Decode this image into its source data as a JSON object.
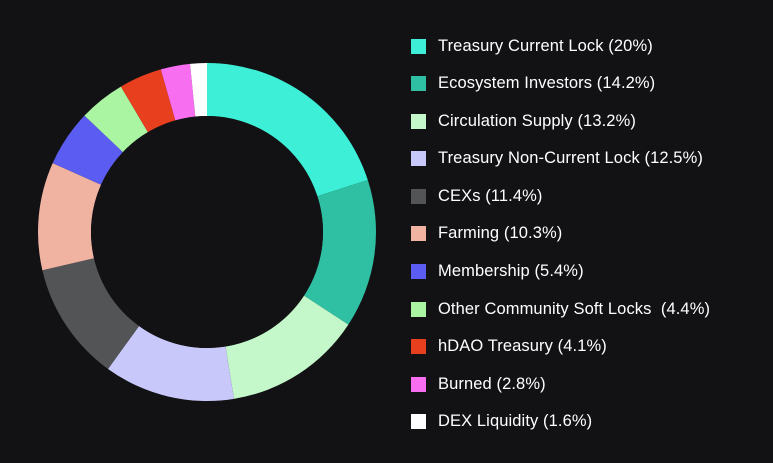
{
  "chart_data": {
    "type": "pie",
    "title": "",
    "donut": true,
    "legend_position": "right",
    "series": [
      {
        "label": "Treasury Current Lock (20%)",
        "value": 20,
        "color": "#3eefd7"
      },
      {
        "label": "Ecosystem Investors (14.2%)",
        "value": 14.2,
        "color": "#2fbfa2"
      },
      {
        "label": "Circulation Supply (13.2%)",
        "value": 13.2,
        "color": "#c4f7c9"
      },
      {
        "label": "Treasury Non-Current Lock (12.5%)",
        "value": 12.5,
        "color": "#c9c8fb"
      },
      {
        "label": "CEXs (11.4%)",
        "value": 11.4,
        "color": "#525456"
      },
      {
        "label": "Farming (10.3%)",
        "value": 10.3,
        "color": "#f0b3a2"
      },
      {
        "label": "Membership (5.4%)",
        "value": 5.4,
        "color": "#5b5cf1"
      },
      {
        "label": "Other Community Soft Locks  (4.4%)",
        "value": 4.4,
        "color": "#aaf5a2"
      },
      {
        "label": "hDAO Treasury (4.1%)",
        "value": 4.1,
        "color": "#e8401f"
      },
      {
        "label": "Burned (2.8%)",
        "value": 2.8,
        "color": "#f86ef0"
      },
      {
        "label": "DEX Liquidity (1.6%)",
        "value": 1.6,
        "color": "#ffffff"
      }
    ]
  }
}
